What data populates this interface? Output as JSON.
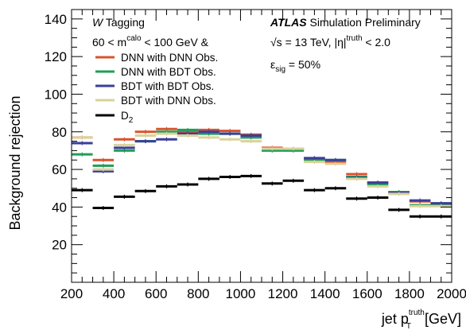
{
  "chart_data": {
    "type": "line",
    "style": "binned-step",
    "ylabel": "Background rejection",
    "xlabel_main": "jet p",
    "xlabel_sub": "T",
    "xlabel_sup": "truth",
    "xlabel_unit": "[GeV]",
    "xlim": [
      200,
      2000
    ],
    "ylim": [
      0,
      145
    ],
    "x_ticks": [
      200,
      400,
      600,
      800,
      1000,
      1200,
      1400,
      1600,
      1800,
      2000
    ],
    "y_ticks": [
      20,
      40,
      60,
      80,
      100,
      120,
      140
    ],
    "bin_edges": [
      200,
      300,
      400,
      500,
      600,
      700,
      800,
      900,
      1000,
      1100,
      1200,
      1300,
      1400,
      1500,
      1600,
      1700,
      1800,
      1900,
      2000
    ],
    "series": [
      {
        "name": "DNN with DNN Obs.",
        "color": "#d9532e",
        "values": [
          77.0,
          65.0,
          76.0,
          80.0,
          81.5,
          80.0,
          81.0,
          80.5,
          78.5,
          71.5,
          70.5,
          66.0,
          64.0,
          57.5,
          53.0,
          48.0,
          43.0,
          41.5
        ]
      },
      {
        "name": "DNN with BDT Obs.",
        "color": "#1f9e5a",
        "values": [
          68.0,
          62.0,
          70.0,
          75.0,
          80.0,
          81.0,
          79.0,
          79.0,
          77.0,
          70.0,
          70.0,
          65.0,
          65.0,
          56.0,
          52.0,
          48.0,
          41.0,
          41.0
        ]
      },
      {
        "name": "BDT with BDT Obs.",
        "color": "#3b3f99",
        "values": [
          74.0,
          59.0,
          71.5,
          75.0,
          76.0,
          79.0,
          80.0,
          79.0,
          78.0,
          71.0,
          71.0,
          66.0,
          65.0,
          55.5,
          53.0,
          47.5,
          43.5,
          42.0
        ]
      },
      {
        "name": "BDT with DNN Obs.",
        "color": "#d9d39a",
        "values": [
          77.0,
          60.0,
          73.0,
          78.0,
          79.0,
          78.0,
          77.0,
          76.0,
          75.0,
          71.0,
          71.0,
          64.0,
          63.0,
          55.0,
          51.0,
          47.0,
          40.5,
          40.5
        ]
      },
      {
        "name": "D2",
        "color": "#000000",
        "values": [
          49.0,
          39.5,
          45.5,
          48.5,
          51.0,
          52.0,
          55.0,
          56.0,
          56.5,
          52.5,
          54.0,
          49.0,
          50.0,
          44.5,
          45.0,
          38.5,
          35.0,
          35.0
        ]
      }
    ],
    "grid": false,
    "legend_position": "top-left"
  },
  "legend": {
    "header_italic": "W",
    "header_rest": " Tagging",
    "selection": {
      "prefix": "60 < m",
      "sup": "calo",
      "suffix": " < 100 GeV &"
    },
    "entries": [
      {
        "label": "DNN with DNN Obs."
      },
      {
        "label": "DNN with BDT Obs."
      },
      {
        "label": "BDT with BDT Obs."
      },
      {
        "label": "BDT with DNN Obs."
      },
      {
        "label_main": "D",
        "label_sub": "2"
      }
    ]
  },
  "annotation": {
    "experiment": "ATLAS",
    "status": " Simulation Preliminary",
    "energy_main": "√s = 13 TeV, |η|",
    "energy_sup": "truth",
    "energy_tail": " < 2.0",
    "eff_main": "ε",
    "eff_sub": "sig",
    "eff_tail": " = 50%"
  }
}
